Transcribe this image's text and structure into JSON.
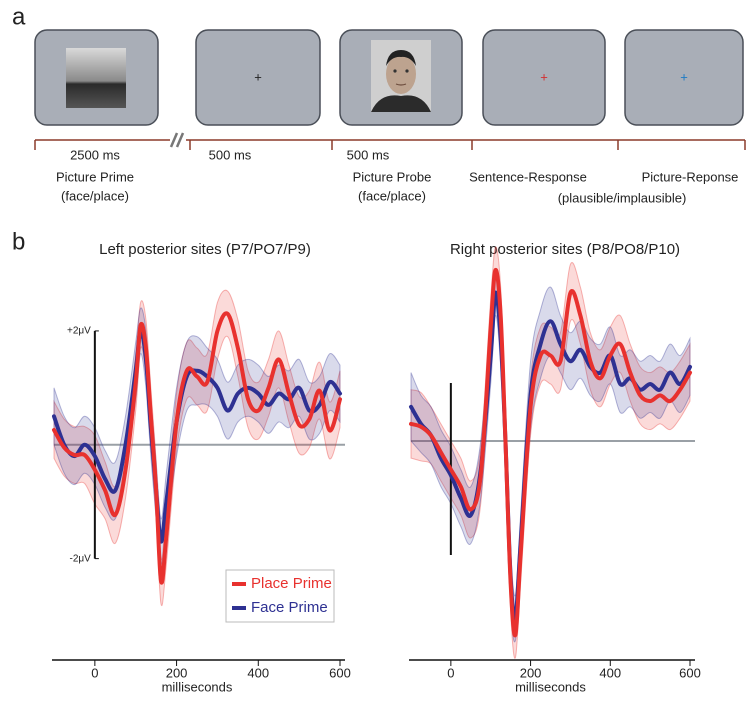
{
  "panel_a": {
    "label": "a",
    "fixation": "+",
    "timeline": [
      {
        "duration": "2500 ms",
        "event": "Picture Prime",
        "detail": "(face/place)"
      },
      {
        "duration": "500 ms"
      },
      {
        "duration": "500 ms",
        "event": "Picture Probe",
        "detail": "(face/place)"
      },
      {
        "event": "Sentence-Response",
        "detail": "(plausible/implausible)"
      },
      {
        "event": "Picture-Reponse"
      }
    ]
  },
  "panel_b": {
    "label": "b"
  },
  "chart_data": [
    {
      "type": "line",
      "title": "Left posterior sites (P7/PO7/P9)",
      "xlabel": "milliseconds",
      "x": [
        -100,
        -75,
        -50,
        -25,
        0,
        25,
        50,
        75,
        100,
        112,
        125,
        137,
        150,
        162,
        175,
        200,
        225,
        250,
        275,
        300,
        325,
        350,
        375,
        400,
        425,
        450,
        475,
        500,
        525,
        550,
        575,
        600
      ],
      "xlim": [
        -100,
        600
      ],
      "xticks": [
        0,
        200,
        400,
        600
      ],
      "ylim": [
        -3.5,
        3
      ],
      "yticks": [
        {
          "value": 2,
          "label": "+2μV"
        },
        {
          "value": -2,
          "label": "-2μV"
        }
      ],
      "legend": true,
      "series": [
        {
          "name": "Place Prime",
          "color": "#e8312e",
          "values": [
            0.26,
            -0.05,
            -0.18,
            -0.18,
            -0.44,
            -0.8,
            -1.23,
            -0.44,
            1.1,
            2.1,
            1.7,
            0.5,
            -0.8,
            -2.4,
            -1.6,
            0.4,
            1.3,
            1.2,
            1.1,
            2.0,
            2.3,
            1.7,
            0.8,
            0.6,
            1.0,
            1.5,
            0.9,
            0.35,
            0.45,
            0.95,
            0.25,
            0.8
          ],
          "errors": [
            0.5,
            0.5,
            0.5,
            0.5,
            0.6,
            0.5,
            0.5,
            0.5,
            0.5,
            0.4,
            0.5,
            0.5,
            0.5,
            0.4,
            0.5,
            0.5,
            0.5,
            0.5,
            0.5,
            0.5,
            0.4,
            0.5,
            0.5,
            0.5,
            0.5,
            0.5,
            0.5,
            0.5,
            0.5,
            0.5,
            0.5,
            0.5
          ]
        },
        {
          "name": "Face Prime",
          "color": "#2e3192",
          "values": [
            0.5,
            0.0,
            -0.2,
            0.0,
            -0.2,
            -0.6,
            -0.8,
            0.0,
            1.3,
            2.0,
            1.5,
            0.3,
            -0.8,
            -1.7,
            -1.0,
            0.4,
            1.2,
            1.3,
            1.2,
            1.0,
            0.6,
            0.9,
            1.0,
            0.9,
            0.7,
            0.9,
            0.8,
            1.0,
            0.6,
            0.7,
            1.1,
            0.9
          ],
          "errors": [
            0.5,
            0.5,
            0.5,
            0.5,
            0.5,
            0.5,
            0.5,
            0.5,
            0.5,
            0.4,
            0.5,
            0.5,
            0.5,
            0.4,
            0.5,
            0.6,
            0.6,
            0.6,
            0.5,
            0.5,
            0.5,
            0.5,
            0.5,
            0.5,
            0.5,
            0.5,
            0.5,
            0.5,
            0.5,
            0.5,
            0.5,
            0.5
          ]
        }
      ]
    },
    {
      "type": "line",
      "title": "Right posterior sites (P8/PO8/P10)",
      "xlabel": "milliseconds",
      "x": [
        -100,
        -75,
        -50,
        -25,
        0,
        25,
        50,
        75,
        100,
        112,
        125,
        137,
        150,
        162,
        175,
        200,
        225,
        250,
        275,
        300,
        325,
        350,
        375,
        400,
        425,
        450,
        475,
        500,
        525,
        550,
        575,
        600
      ],
      "xlim": [
        -100,
        600
      ],
      "xticks": [
        0,
        200,
        400,
        600
      ],
      "ylim": [
        -3.8,
        3.2
      ],
      "legend": false,
      "series": [
        {
          "name": "Place Prime",
          "color": "#e8312e",
          "values": [
            0.3,
            0.25,
            0.1,
            -0.2,
            -0.5,
            -0.8,
            -1.2,
            -0.6,
            2.0,
            3.0,
            2.2,
            0.0,
            -2.5,
            -3.4,
            -2.0,
            0.6,
            1.5,
            1.5,
            1.4,
            2.6,
            2.2,
            1.4,
            1.1,
            1.5,
            1.7,
            1.2,
            0.8,
            0.7,
            0.8,
            0.7,
            0.9,
            1.2
          ],
          "errors": [
            0.6,
            0.6,
            0.5,
            0.5,
            0.5,
            0.5,
            0.5,
            0.5,
            0.5,
            0.4,
            0.5,
            0.5,
            0.5,
            0.4,
            0.5,
            0.5,
            0.5,
            0.5,
            0.5,
            0.5,
            0.5,
            0.5,
            0.5,
            0.5,
            0.5,
            0.5,
            0.5,
            0.5,
            0.5,
            0.5,
            0.5,
            0.5
          ]
        },
        {
          "name": "Face Prime",
          "color": "#2e3192",
          "values": [
            0.6,
            0.3,
            0.1,
            -0.3,
            -0.6,
            -1.0,
            -1.3,
            -0.5,
            1.5,
            2.6,
            1.8,
            0.0,
            -2.4,
            -3.1,
            -1.8,
            0.8,
            1.7,
            2.1,
            1.7,
            1.4,
            1.6,
            1.3,
            1.2,
            1.5,
            1.0,
            1.1,
            0.9,
            1.0,
            0.9,
            1.2,
            1.0,
            1.3
          ],
          "errors": [
            0.6,
            0.5,
            0.5,
            0.5,
            0.5,
            0.5,
            0.5,
            0.5,
            0.5,
            0.4,
            0.5,
            0.5,
            0.5,
            0.4,
            0.5,
            0.6,
            0.6,
            0.6,
            0.5,
            0.5,
            0.5,
            0.5,
            0.5,
            0.5,
            0.5,
            0.5,
            0.5,
            0.5,
            0.5,
            0.5,
            0.5,
            0.5
          ]
        }
      ]
    }
  ]
}
